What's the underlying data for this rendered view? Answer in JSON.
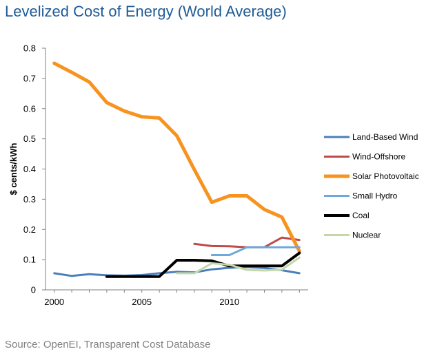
{
  "chart_data": {
    "type": "line",
    "title": "Levelized Cost of Energy (World Average)",
    "xlabel": "",
    "ylabel": "$ cents/kWh",
    "xlim": [
      1999.5,
      2014.5
    ],
    "ylim": [
      0,
      0.8
    ],
    "x_ticks": [
      2000,
      2005,
      2010
    ],
    "y_ticks": [
      "0",
      "0.1",
      "0.2",
      "0.3",
      "0.4",
      "0.5",
      "0.6",
      "0.7",
      "0.8"
    ],
    "legend_position": "right",
    "series": [
      {
        "name": "Land-Based Wind",
        "color": "#4a7ebb",
        "width": 3,
        "points": [
          [
            2000,
            0.055
          ],
          [
            2001,
            0.046
          ],
          [
            2002,
            0.052
          ],
          [
            2003,
            0.048
          ],
          [
            2004,
            0.047
          ],
          [
            2005,
            0.049
          ],
          [
            2006,
            0.055
          ],
          [
            2007,
            0.06
          ],
          [
            2008,
            0.058
          ],
          [
            2009,
            0.068
          ],
          [
            2010,
            0.073
          ],
          [
            2011,
            0.076
          ],
          [
            2012,
            0.072
          ],
          [
            2013,
            0.065
          ],
          [
            2014,
            0.055
          ]
        ]
      },
      {
        "name": "Wind-Offshore",
        "color": "#be4b48",
        "width": 3,
        "points": [
          [
            2008,
            0.152
          ],
          [
            2009,
            0.145
          ],
          [
            2010,
            0.144
          ],
          [
            2011,
            0.141
          ],
          [
            2012,
            0.141
          ],
          [
            2013,
            0.173
          ],
          [
            2014,
            0.165
          ]
        ]
      },
      {
        "name": "Solar Photovoltaic",
        "color": "#f7931e",
        "width": 5,
        "points": [
          [
            2000,
            0.75
          ],
          [
            2001,
            0.72
          ],
          [
            2002,
            0.688
          ],
          [
            2003,
            0.62
          ],
          [
            2004,
            0.592
          ],
          [
            2005,
            0.573
          ],
          [
            2006,
            0.569
          ],
          [
            2007,
            0.51
          ],
          [
            2008,
            0.398
          ],
          [
            2009,
            0.29
          ],
          [
            2010,
            0.311
          ],
          [
            2011,
            0.311
          ],
          [
            2012,
            0.266
          ],
          [
            2013,
            0.241
          ],
          [
            2014,
            0.128
          ]
        ]
      },
      {
        "name": "Small Hydro",
        "color": "#6fa8dc",
        "width": 3,
        "points": [
          [
            2009,
            0.115
          ],
          [
            2010,
            0.115
          ],
          [
            2011,
            0.141
          ],
          [
            2012,
            0.141
          ],
          [
            2013,
            0.141
          ],
          [
            2014,
            0.141
          ]
        ]
      },
      {
        "name": "Coal",
        "color": "#000000",
        "width": 4,
        "points": [
          [
            2003,
            0.044
          ],
          [
            2004,
            0.044
          ],
          [
            2005,
            0.044
          ],
          [
            2006,
            0.044
          ],
          [
            2007,
            0.098
          ],
          [
            2008,
            0.098
          ],
          [
            2009,
            0.096
          ],
          [
            2010,
            0.079
          ],
          [
            2011,
            0.079
          ],
          [
            2012,
            0.079
          ],
          [
            2013,
            0.079
          ],
          [
            2014,
            0.122
          ]
        ]
      },
      {
        "name": "Nuclear",
        "color": "#c4d7a7",
        "width": 3,
        "points": [
          [
            2007,
            0.055
          ],
          [
            2008,
            0.055
          ],
          [
            2009,
            0.088
          ],
          [
            2010,
            0.083
          ],
          [
            2011,
            0.066
          ],
          [
            2012,
            0.064
          ],
          [
            2013,
            0.067
          ],
          [
            2014,
            0.107
          ]
        ]
      }
    ]
  },
  "source": "Source: OpenEI, Transparent Cost Database"
}
